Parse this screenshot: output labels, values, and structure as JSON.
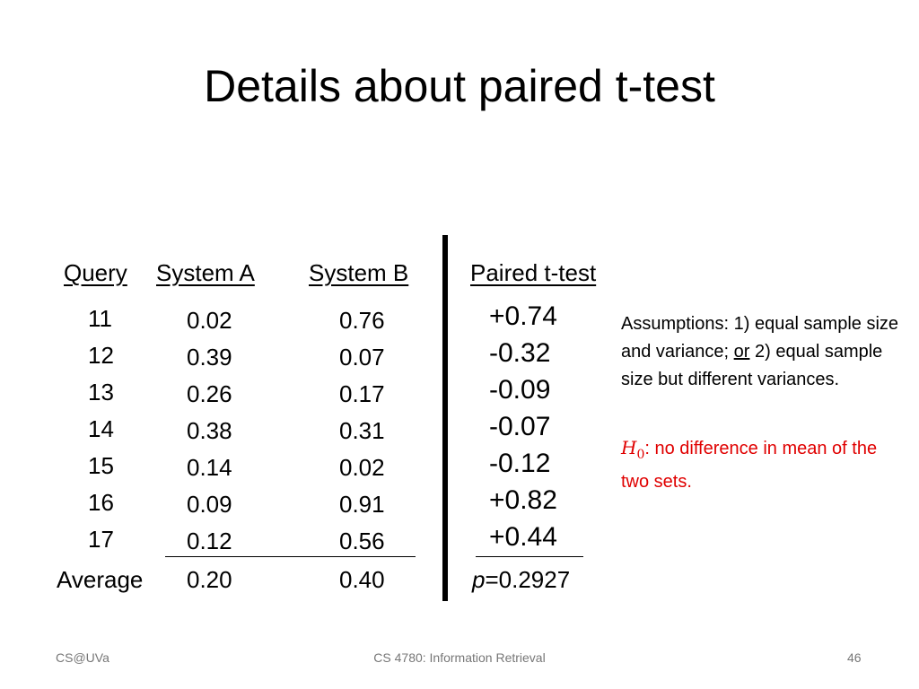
{
  "slide": {
    "title": "Details about paired t-test"
  },
  "table": {
    "headers": {
      "query": "Query",
      "system_a": "System A",
      "system_b": "System B",
      "paired": "Paired t-test"
    },
    "rows": [
      {
        "query": "11",
        "a": "0.02",
        "b": "0.76",
        "diff": "+0.74"
      },
      {
        "query": "12",
        "a": "0.39",
        "b": "0.07",
        "diff": "-0.32"
      },
      {
        "query": "13",
        "a": "0.26",
        "b": "0.17",
        "diff": "-0.09"
      },
      {
        "query": "14",
        "a": "0.38",
        "b": "0.31",
        "diff": "-0.07"
      },
      {
        "query": "15",
        "a": "0.14",
        "b": "0.02",
        "diff": "-0.12"
      },
      {
        "query": "16",
        "a": "0.09",
        "b": "0.91",
        "diff": "+0.82"
      },
      {
        "query": "17",
        "a": "0.12",
        "b": "0.56",
        "diff": "+0.44"
      }
    ],
    "average": {
      "label": "Average",
      "a": "0.20",
      "b": "0.40",
      "p_symbol": "p",
      "p_value": "=0.2927"
    }
  },
  "notes": {
    "assumptions_pre": "Assumptions: 1) equal sample size and variance; ",
    "assumptions_or": "or",
    "assumptions_post": " 2) equal sample size but different variances.",
    "h0_symbol": "H",
    "h0_sub": "0",
    "h0_text": ": no difference in mean of the two sets."
  },
  "footer": {
    "left": "CS@UVa",
    "center": "CS 4780: Information Retrieval",
    "page": "46"
  },
  "colors": {
    "hypothesis": "#e00000",
    "footer_text": "#777777"
  }
}
